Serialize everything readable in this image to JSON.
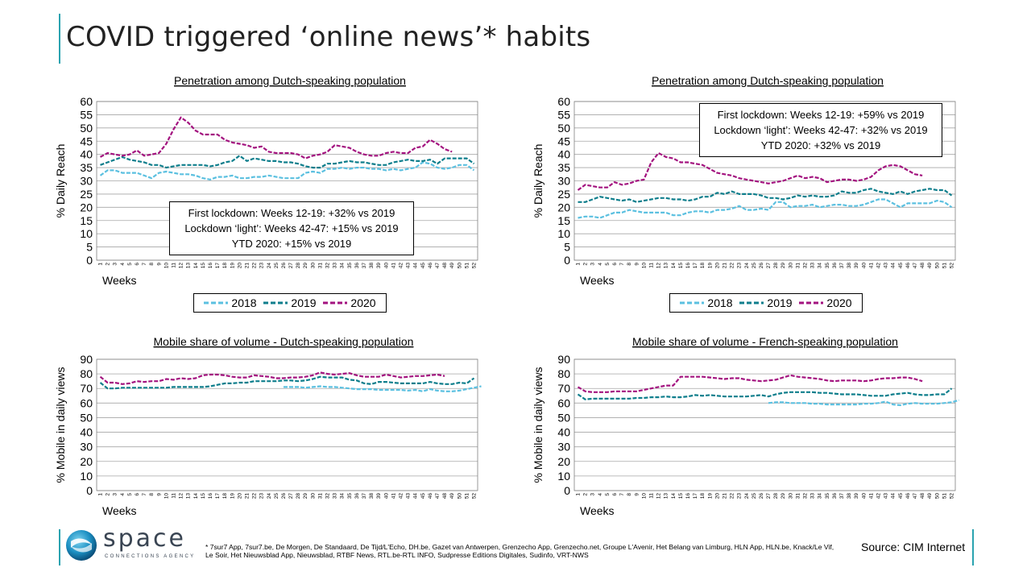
{
  "page": {
    "title": "COVID triggered ‘online news’* habits",
    "footnote": "* 7sur7 App, 7sur7.be, De Morgen, De Standaard, De Tijd/L'Echo, DH.be, Gazet van Antwerpen, Grenzecho App, Grenzecho.net, Groupe L'Avenir, Het Belang van Limburg, HLN App, HLN.be, Knack/Le Vif, Le Soir, Het Nieuwsblad App, Nieuwsblad, RTBF News, RTL.be-RTL INFO, Sudpresse Editions Digitales, Sudinfo, VRT-NWS",
    "source": "Source: CIM Internet",
    "logo_word": "space",
    "logo_sub": "CONNECTIONS AGENCY"
  },
  "colors": {
    "2018": "#5bc0e0",
    "2019": "#0e7e8c",
    "2020": "#a3137f",
    "accent": "#2aa3b0"
  },
  "chart_data": [
    {
      "type": "line",
      "title": "Penetration among Dutch-speaking population",
      "ylabel": "% Daily Reach",
      "xlabel": "Weeks",
      "ylim": [
        0,
        60
      ],
      "ystep": 5,
      "grid": true,
      "legend": [
        "2018",
        "2019",
        "2020"
      ],
      "annotation": [
        "First lockdown: Weeks 12-19: +32% vs 2019",
        "Lockdown ‘light’: Weeks 42-47: +15% vs 2019",
        "YTD 2020: +15% vs 2019"
      ],
      "series": [
        {
          "name": "2018",
          "values": [
            32,
            34,
            34,
            33,
            33,
            33,
            32,
            31,
            33,
            33.5,
            33,
            32.5,
            32.5,
            32,
            31,
            30.5,
            31.5,
            31.5,
            32,
            31,
            31,
            31.5,
            31.5,
            32,
            31.5,
            31,
            31,
            31,
            33,
            33.5,
            33,
            34.5,
            34.5,
            35,
            34.5,
            35,
            35,
            34.5,
            34.5,
            34,
            34.5,
            34,
            34.5,
            35,
            37,
            36.5,
            35,
            34.5,
            35,
            36,
            36,
            34
          ]
        },
        {
          "name": "2019",
          "values": [
            36,
            37,
            38,
            39,
            38,
            37.5,
            37,
            36,
            36,
            35,
            35.5,
            36,
            36,
            36,
            36,
            35.5,
            36,
            37,
            37.5,
            39.5,
            37.5,
            38.5,
            38,
            37.5,
            37.5,
            37,
            37,
            36.5,
            35.5,
            35,
            35,
            36.5,
            36.5,
            37,
            37.5,
            37,
            37,
            36.5,
            36,
            36,
            37,
            37.5,
            38,
            37.5,
            37.5,
            38,
            36.5,
            38.5,
            38.5,
            38.5,
            38.5,
            36.5
          ]
        },
        {
          "name": "2020",
          "values": [
            39,
            40.5,
            40,
            39.5,
            40,
            41.5,
            39.5,
            40,
            40.5,
            44,
            49.5,
            54,
            52,
            49,
            47.5,
            47.5,
            47.5,
            45.5,
            44.5,
            44,
            43.5,
            42.5,
            43,
            41,
            40.5,
            40.5,
            40.5,
            40,
            38.5,
            39.5,
            40,
            41,
            43.5,
            43,
            42.5,
            41,
            40,
            39.5,
            39.5,
            40.5,
            41,
            40.5,
            40.5,
            42.5,
            43,
            45.5,
            44,
            42,
            41
          ]
        }
      ]
    },
    {
      "type": "line",
      "title": "Penetration among Dutch-speaking population",
      "ylabel": "% Daily Reach",
      "xlabel": "Weeks",
      "ylim": [
        0,
        60
      ],
      "ystep": 5,
      "grid": true,
      "legend": [
        "2018",
        "2019",
        "2020"
      ],
      "annotation": [
        "First lockdown: Weeks 12-19: +59% vs 2019",
        "Lockdown ‘light’: Weeks 42-47: +32% vs 2019",
        "YTD 2020: +32% vs 2019"
      ],
      "series": [
        {
          "name": "2018",
          "values": [
            16,
            16.5,
            16.5,
            16,
            17,
            18,
            18,
            19,
            18.5,
            18,
            18,
            18,
            18,
            17,
            17,
            18,
            18.5,
            18.5,
            18,
            19,
            19,
            19.5,
            20.5,
            19,
            19,
            19.5,
            19,
            22,
            22,
            20,
            20.5,
            20.5,
            21,
            20,
            20.5,
            21,
            21,
            20.5,
            20.5,
            21,
            22,
            23,
            23,
            21.5,
            20,
            21.5,
            21.5,
            21.5,
            21.5,
            22.5,
            22,
            20
          ]
        },
        {
          "name": "2019",
          "values": [
            22,
            22,
            23,
            24,
            23.5,
            23,
            22.5,
            23,
            22,
            22.5,
            23,
            23.5,
            23.5,
            23,
            23,
            22.5,
            23,
            24,
            24,
            25.5,
            25,
            26,
            25,
            25,
            25,
            24.5,
            23.5,
            23.5,
            23,
            23.5,
            24.5,
            24,
            24.5,
            24,
            24,
            24.5,
            26,
            25.5,
            25.5,
            26.5,
            27,
            26,
            25.5,
            25,
            26,
            25,
            26,
            26.5,
            27,
            26.5,
            26.5,
            24.5
          ]
        },
        {
          "name": "2020",
          "values": [
            26.5,
            28.5,
            28,
            27.5,
            27.5,
            29.5,
            28.5,
            29,
            30,
            30.5,
            37,
            40.5,
            39,
            38.5,
            37,
            37,
            36.5,
            36,
            34.5,
            33,
            32.5,
            32,
            31,
            30.5,
            30,
            29.5,
            29,
            29.5,
            30,
            31,
            32,
            31,
            31.5,
            31,
            29.5,
            30,
            30.5,
            30.5,
            30,
            30.5,
            31.5,
            34,
            35.5,
            36,
            35.5,
            34,
            32.5,
            32
          ]
        }
      ]
    },
    {
      "type": "line",
      "title": "Mobile share of volume - Dutch-speaking population",
      "ylabel": "% Mobile in daily views",
      "xlabel": "Weeks",
      "ylim": [
        0,
        90
      ],
      "ystep": 10,
      "grid": true,
      "series": [
        {
          "name": "2018",
          "x_start": 26,
          "values": [
            71,
            71,
            71,
            70.5,
            71,
            71.5,
            71,
            71,
            70.5,
            70,
            69.5,
            69.5,
            69.5,
            69,
            69,
            69,
            69,
            68.5,
            69,
            68,
            69.5,
            68.5,
            68,
            68,
            68.5,
            69.5,
            70.5,
            71.5
          ]
        },
        {
          "name": "2019",
          "values": [
            74,
            70,
            70,
            70.5,
            70.5,
            70.5,
            70.5,
            70.5,
            70.5,
            70.5,
            71,
            71,
            71,
            71,
            71,
            71.5,
            72.5,
            73.5,
            73.5,
            74,
            74,
            75,
            75,
            75,
            75,
            75.5,
            75.5,
            75,
            75.5,
            76.5,
            78,
            77.5,
            77.5,
            77.5,
            76,
            75.5,
            73.5,
            73,
            74.5,
            74.5,
            74,
            73.5,
            73.5,
            73.5,
            73.5,
            74.5,
            73.5,
            73,
            73,
            74,
            73.5,
            77
          ]
        },
        {
          "name": "2020",
          "values": [
            78,
            74,
            74,
            73,
            73.5,
            75,
            74.5,
            75,
            75,
            76.5,
            76,
            77,
            76.5,
            77,
            79,
            79.5,
            79.5,
            79,
            78,
            77.5,
            77.5,
            79,
            78.5,
            78,
            77,
            77,
            77.5,
            77.5,
            78,
            79,
            81,
            80,
            79.5,
            80,
            80.5,
            79,
            78,
            78,
            78,
            79.5,
            78.5,
            77.5,
            78,
            78.5,
            78.5,
            79,
            79.5,
            78.5
          ]
        }
      ]
    },
    {
      "type": "line",
      "title": "Mobile share of volume - French-speaking population",
      "ylabel": "% Mobile in daily views",
      "xlabel": "Weeks",
      "ylim": [
        0,
        90
      ],
      "ystep": 10,
      "grid": true,
      "series": [
        {
          "name": "2018",
          "x_start": 27,
          "values": [
            60,
            60.5,
            60.5,
            60,
            60,
            60,
            59.5,
            59.5,
            59,
            59,
            59,
            59,
            59,
            59.5,
            59.5,
            60,
            61,
            59,
            58.5,
            59.5,
            60,
            59.5,
            59.5,
            59.5,
            60,
            60.5,
            62
          ]
        },
        {
          "name": "2019",
          "values": [
            66,
            62.5,
            63,
            63,
            63,
            63,
            63,
            63,
            63.5,
            63.5,
            64,
            64,
            64.5,
            64,
            64,
            64.5,
            65.5,
            65,
            65.5,
            65,
            64.5,
            64.5,
            64.5,
            64.5,
            65,
            65.5,
            64.5,
            66,
            67,
            67.5,
            67.5,
            67.5,
            67.5,
            67,
            67,
            66.5,
            66,
            66,
            66,
            65.5,
            65,
            65,
            65,
            66,
            66.5,
            67,
            66,
            65.5,
            65.5,
            66,
            66,
            70
          ]
        },
        {
          "name": "2020",
          "values": [
            71,
            68,
            67.5,
            67.5,
            67.5,
            68,
            68,
            68,
            68,
            69,
            70,
            71,
            72,
            72,
            78,
            78,
            78,
            78,
            77.5,
            77,
            76.5,
            77,
            77,
            76,
            75.5,
            75,
            75.5,
            76,
            77.5,
            79,
            78,
            77.5,
            77,
            76.5,
            75.5,
            75,
            75.5,
            75.5,
            75.5,
            75,
            75.5,
            76.5,
            77,
            77,
            77.5,
            77.5,
            76.5,
            75
          ]
        }
      ]
    }
  ]
}
